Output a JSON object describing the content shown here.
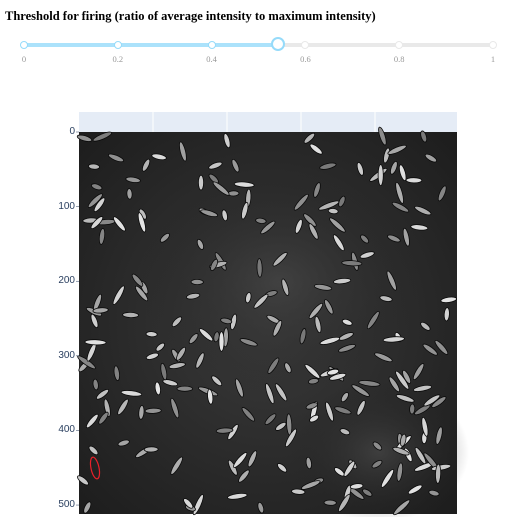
{
  "slider": {
    "title": "Threshold for firing (ratio of average intensity to maximum intensity)",
    "min": 0,
    "max": 1,
    "value": 0.54,
    "marks": [
      "0",
      "0.2",
      "0.4",
      "0.6",
      "0.8",
      "1"
    ],
    "mark_values": [
      0,
      0.2,
      0.4,
      0.6,
      0.8,
      1
    ],
    "colors": {
      "track": "#abe2fb",
      "handle_border": "#96dbfa",
      "rail": "#e9e9e9"
    }
  },
  "image_plot": {
    "y_ticks": [
      "0",
      "100",
      "200",
      "300",
      "400",
      "500"
    ],
    "y_tick_values": [
      0,
      100,
      200,
      300,
      400,
      500
    ],
    "y_range": [
      0,
      512
    ],
    "colors": {
      "frame": "#e5ecf6",
      "highlight": "#e8202a"
    }
  }
}
